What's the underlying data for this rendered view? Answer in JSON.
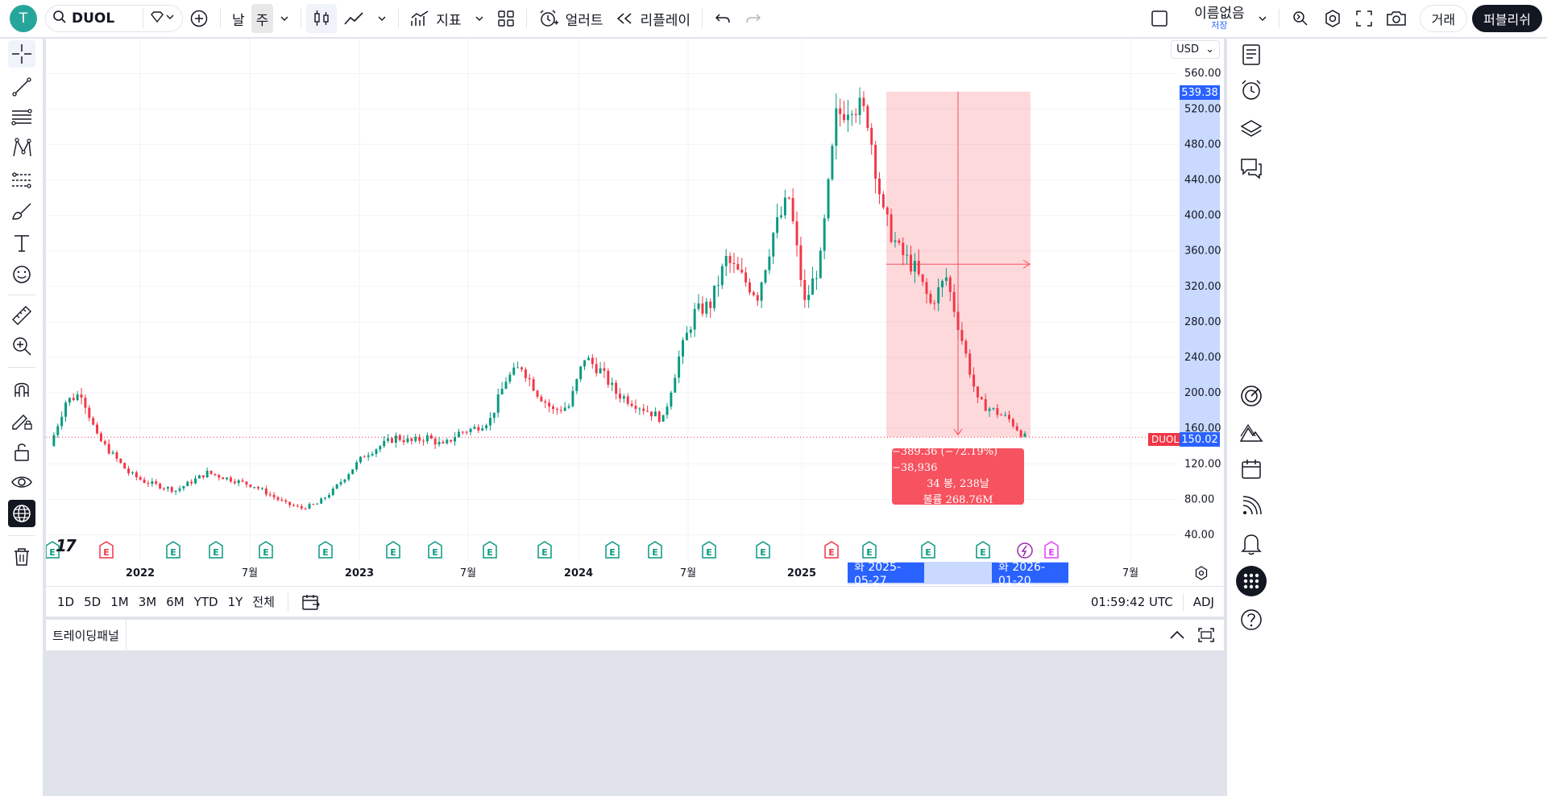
{
  "user": {
    "avatar_letter": "T"
  },
  "toolbar": {
    "symbol": "DUOL",
    "interval_day": "날",
    "interval_week": "주",
    "indicators_label": "지표",
    "alert_label": "얼러트",
    "replay_label": "리플레이",
    "layout_name": "이름없음",
    "layout_status": "저장",
    "trade_label": "거래",
    "publish_label": "퍼블리쉬"
  },
  "chart": {
    "currency": "USD",
    "symbol_tag": "DUOL",
    "last_price": "150.02",
    "top_price": "539.38",
    "price_ticks": [
      "560.00",
      "520.00",
      "480.00",
      "440.00",
      "400.00",
      "360.00",
      "320.00",
      "280.00",
      "240.00",
      "200.00",
      "160.00",
      "120.00",
      "80.00",
      "40.00"
    ],
    "time_ticks": [
      {
        "label": "2022",
        "bold": true
      },
      {
        "label": "7월",
        "bold": false
      },
      {
        "label": "2023",
        "bold": true
      },
      {
        "label": "7월",
        "bold": false
      },
      {
        "label": "2024",
        "bold": true
      },
      {
        "label": "7월",
        "bold": false
      },
      {
        "label": "2025",
        "bold": true
      },
      {
        "label": "7월",
        "bold": false
      }
    ],
    "measure": {
      "line1": "−389.36 (−72.19%) −38,936",
      "line2": "34 봉, 238날",
      "line3": "볼륨 268.76M"
    },
    "date_start": "화 2025-05-27",
    "date_end": "화 2026-01-20",
    "earnings_marker": "E",
    "up_color": "#089981",
    "down_color": "#f23645"
  },
  "chart_data": {
    "type": "candlestick",
    "symbol": "DUOL",
    "interval": "주",
    "ylim": [
      20,
      580
    ],
    "y_ticks": [
      560,
      520,
      480,
      440,
      400,
      360,
      320,
      280,
      240,
      200,
      160,
      120,
      80,
      40
    ],
    "series": [
      {
        "name": "DUOL",
        "period": "2021-08 to 2026-01",
        "approx_closes": [
          140,
          190,
          200,
          150,
          130,
          110,
          100,
          95,
          90,
          100,
          110,
          105,
          100,
          95,
          85,
          75,
          70,
          75,
          90,
          110,
          130,
          140,
          150,
          145,
          150,
          140,
          155,
          160,
          170,
          215,
          230,
          200,
          180,
          185,
          240,
          225,
          200,
          190,
          180,
          170,
          240,
          290,
          300,
          350,
          330,
          310,
          380,
          420,
          300,
          350,
          510,
          530,
          510,
          400,
          360,
          340,
          300,
          330,
          260,
          190,
          180,
          170,
          150
        ]
      }
    ],
    "last": 150.02,
    "measure_change": -389.36,
    "measure_change_pct": -72.19,
    "measure_bars": 34,
    "measure_days": 238,
    "measure_volume": "268.76M"
  },
  "rangebar": {
    "ranges": [
      "1D",
      "5D",
      "1M",
      "3M",
      "6M",
      "YTD",
      "1Y",
      "전체"
    ],
    "clock": "01:59:42 UTC",
    "adj": "ADJ"
  },
  "tradepanel": {
    "tab_label": "트레이딩패널"
  }
}
